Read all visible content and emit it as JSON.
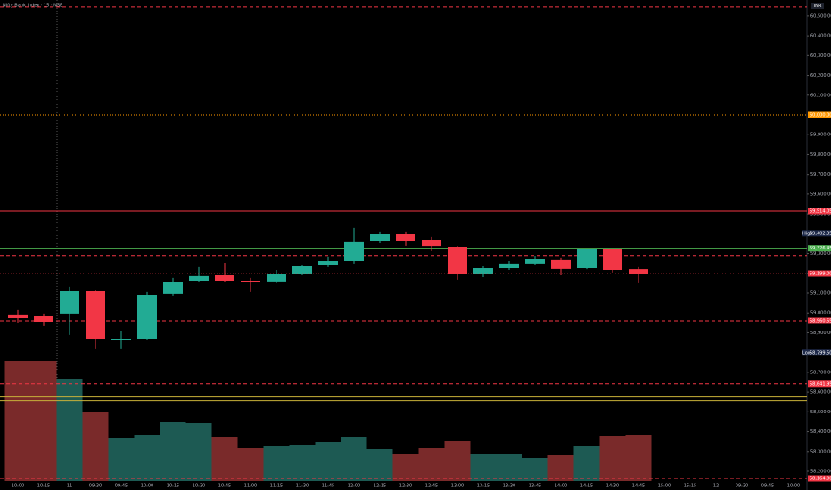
{
  "chart_data": {
    "type": "candlestick",
    "title": "Nifty Bank Index · 15 · NSE",
    "currency": "INR",
    "categories": [
      "10:00",
      "10:15",
      "11",
      "09:30",
      "09:45",
      "10:00",
      "10:15",
      "10:30",
      "10:45",
      "11:00",
      "11:15",
      "11:30",
      "11:45",
      "12:00",
      "12:15",
      "12:30",
      "12:45",
      "13:00",
      "13:15",
      "13:30",
      "13:45",
      "14:00",
      "14:15",
      "14:30",
      "14:45"
    ],
    "future_categories": [
      "15:00",
      "15:15",
      "12",
      "09:30",
      "09:45",
      "10:00"
    ],
    "open": [
      58988,
      58983,
      58997,
      59109,
      58862,
      58866,
      59096,
      59163,
      59190,
      59163,
      59159,
      59199,
      59240,
      59262,
      59361,
      59397,
      59370,
      59334,
      59195,
      59226,
      59249,
      59267,
      59226,
      59325,
      59221
    ],
    "high": [
      59015,
      58997,
      59132,
      59118,
      58907,
      59105,
      59177,
      59231,
      59253,
      59177,
      59217,
      59244,
      59285,
      59429,
      59411,
      59411,
      59384,
      59338,
      59235,
      59262,
      59289,
      59276,
      59325,
      59325,
      59231
    ],
    "low": [
      58952,
      58934,
      58889,
      58817,
      58817,
      58862,
      59087,
      59154,
      59154,
      59105,
      59150,
      59190,
      59231,
      59249,
      59352,
      59339,
      59312,
      59168,
      59181,
      59217,
      59240,
      59190,
      59221,
      59204,
      59150
    ],
    "close": [
      58974,
      58956,
      59109,
      58866,
      58866,
      59091,
      59154,
      59186,
      59163,
      59154,
      59199,
      59235,
      59262,
      59357,
      59397,
      59361,
      59338,
      59195,
      59226,
      59249,
      59271,
      59222,
      59321,
      59217,
      59199
    ],
    "last_price_label": "59,199.00",
    "up_color": "#22ab94",
    "down_color": "#f23645",
    "volume": [
      135,
      135,
      115,
      77,
      48,
      52,
      66,
      65,
      49,
      37,
      39,
      40,
      44,
      50,
      36,
      30,
      37,
      45,
      30,
      30,
      26,
      29,
      39,
      51,
      52
    ],
    "volume_up_color": "#1d5a53",
    "volume_down_color": "#7a2a2a",
    "y2lim": [
      0,
      540
    ],
    "ylim": [
      58105.5,
      60580.5
    ],
    "yticks": [
      {
        "value": 58200,
        "label": "58,200.00"
      },
      {
        "value": 58300,
        "label": "58,300.00"
      },
      {
        "value": 58400,
        "label": "58,400.00"
      },
      {
        "value": 58500,
        "label": "58,500.00"
      },
      {
        "value": 58600,
        "label": "58,600.00"
      },
      {
        "value": 58700,
        "label": "58,700.00"
      },
      {
        "value": 58800,
        "label": "58,800.00"
      },
      {
        "value": 58900,
        "label": "58,900.00"
      },
      {
        "value": 59000,
        "label": "59,000.00"
      },
      {
        "value": 59100,
        "label": "59,100.00"
      },
      {
        "value": 59200,
        "label": "59,200.00"
      },
      {
        "value": 59300,
        "label": "59,300.00"
      },
      {
        "value": 59400,
        "label": "59,400.00"
      },
      {
        "value": 59500,
        "label": "59,500.00"
      },
      {
        "value": 59600,
        "label": "59,600.00"
      },
      {
        "value": 59700,
        "label": "59,700.00"
      },
      {
        "value": 59800,
        "label": "59,800.00"
      },
      {
        "value": 59900,
        "label": "59,900.00"
      },
      {
        "value": 60100,
        "label": "60,100.00"
      },
      {
        "value": 60200,
        "label": "60,200.00"
      },
      {
        "value": 60300,
        "label": "60,300.00"
      },
      {
        "value": 60400,
        "label": "60,400.00"
      },
      {
        "value": 60500,
        "label": "60,500.00"
      }
    ],
    "levels": [
      {
        "value": 60545,
        "color": "#f23645",
        "style": "dashed"
      },
      {
        "value": 60000,
        "color": "#ff9800",
        "style": "dotted",
        "label": "60,000.00"
      },
      {
        "value": 59514.05,
        "color": "#f23645",
        "style": "solid",
        "label": "59,514.05"
      },
      {
        "value": 59326.45,
        "color": "#4caf50",
        "style": "solid",
        "label": "59,326.45"
      },
      {
        "value": 59290,
        "color": "#f23645",
        "style": "dashed"
      },
      {
        "value": 58960.55,
        "color": "#f23645",
        "style": "dashed",
        "label": "58,960.55"
      },
      {
        "value": 58641.95,
        "color": "#f23645",
        "style": "dashed",
        "label": "58,641.95"
      },
      {
        "value": 58575,
        "color": "#c9b23a",
        "style": "solid"
      },
      {
        "value": 58557,
        "color": "#c9b23a",
        "style": "solid"
      },
      {
        "value": 58164,
        "color": "#f23645",
        "style": "dashed",
        "label": "58,164.00"
      }
    ],
    "markers": [
      {
        "name": "High",
        "value": 59402.35,
        "label": "59,402.35"
      },
      {
        "name": "Low",
        "value": 58799.5,
        "label": "58,799.50"
      }
    ]
  }
}
